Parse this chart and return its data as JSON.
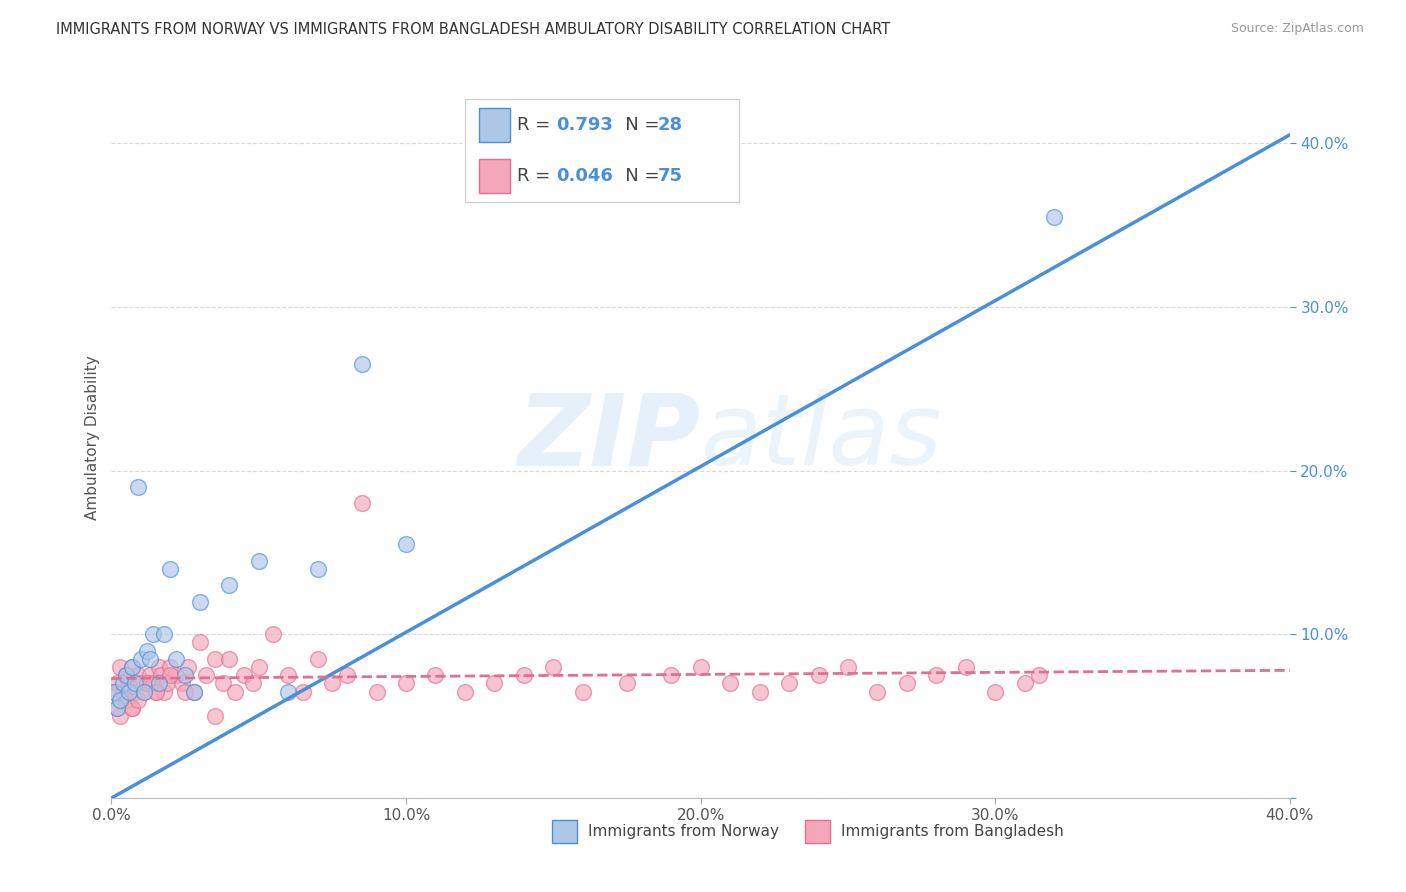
{
  "title": "IMMIGRANTS FROM NORWAY VS IMMIGRANTS FROM BANGLADESH AMBULATORY DISABILITY CORRELATION CHART",
  "source": "Source: ZipAtlas.com",
  "ylabel": "Ambulatory Disability",
  "xmin": 0.0,
  "xmax": 0.4,
  "ymin": 0.0,
  "ymax": 0.44,
  "norway_R": 0.793,
  "norway_N": 28,
  "bangladesh_R": 0.046,
  "bangladesh_N": 75,
  "norway_color": "#aec6e8",
  "norway_line_color": "#4a90d9",
  "bangladesh_color": "#f4a7b9",
  "bangladesh_line_color": "#e07090",
  "norway_scatter_x": [
    0.001,
    0.002,
    0.003,
    0.004,
    0.005,
    0.006,
    0.007,
    0.008,
    0.009,
    0.01,
    0.011,
    0.012,
    0.013,
    0.014,
    0.016,
    0.018,
    0.02,
    0.022,
    0.025,
    0.028,
    0.03,
    0.04,
    0.05,
    0.06,
    0.07,
    0.085,
    0.1,
    0.32
  ],
  "norway_scatter_y": [
    0.065,
    0.055,
    0.06,
    0.07,
    0.075,
    0.065,
    0.08,
    0.07,
    0.19,
    0.085,
    0.065,
    0.09,
    0.085,
    0.1,
    0.07,
    0.1,
    0.14,
    0.085,
    0.075,
    0.065,
    0.12,
    0.13,
    0.145,
    0.065,
    0.14,
    0.265,
    0.155,
    0.355
  ],
  "bangladesh_scatter_x": [
    0.001,
    0.002,
    0.003,
    0.004,
    0.005,
    0.005,
    0.006,
    0.007,
    0.007,
    0.008,
    0.009,
    0.01,
    0.011,
    0.012,
    0.013,
    0.014,
    0.015,
    0.016,
    0.017,
    0.018,
    0.019,
    0.02,
    0.022,
    0.024,
    0.026,
    0.028,
    0.03,
    0.032,
    0.035,
    0.038,
    0.04,
    0.042,
    0.045,
    0.048,
    0.05,
    0.055,
    0.06,
    0.065,
    0.07,
    0.075,
    0.08,
    0.085,
    0.09,
    0.1,
    0.11,
    0.12,
    0.13,
    0.14,
    0.15,
    0.16,
    0.175,
    0.19,
    0.2,
    0.21,
    0.22,
    0.23,
    0.24,
    0.25,
    0.26,
    0.27,
    0.28,
    0.29,
    0.3,
    0.31,
    0.315,
    0.002,
    0.003,
    0.005,
    0.007,
    0.009,
    0.012,
    0.015,
    0.02,
    0.025,
    0.035
  ],
  "bangladesh_scatter_y": [
    0.065,
    0.07,
    0.08,
    0.065,
    0.075,
    0.06,
    0.07,
    0.08,
    0.055,
    0.065,
    0.075,
    0.07,
    0.065,
    0.07,
    0.075,
    0.07,
    0.065,
    0.08,
    0.075,
    0.065,
    0.07,
    0.08,
    0.075,
    0.07,
    0.08,
    0.065,
    0.095,
    0.075,
    0.085,
    0.07,
    0.085,
    0.065,
    0.075,
    0.07,
    0.08,
    0.1,
    0.075,
    0.065,
    0.085,
    0.07,
    0.075,
    0.18,
    0.065,
    0.07,
    0.075,
    0.065,
    0.07,
    0.075,
    0.08,
    0.065,
    0.07,
    0.075,
    0.08,
    0.07,
    0.065,
    0.07,
    0.075,
    0.08,
    0.065,
    0.07,
    0.075,
    0.08,
    0.065,
    0.07,
    0.075,
    0.055,
    0.05,
    0.06,
    0.055,
    0.06,
    0.07,
    0.065,
    0.075,
    0.065,
    0.05
  ],
  "norway_line_x0": 0.0,
  "norway_line_y0": 0.0,
  "norway_line_x1": 0.4,
  "norway_line_y1": 0.405,
  "bangladesh_line_x0": 0.0,
  "bangladesh_line_y0": 0.073,
  "bangladesh_line_x1": 0.4,
  "bangladesh_line_y1": 0.078,
  "background_color": "#ffffff",
  "grid_color": "#d0d0d0",
  "watermark_zip": "ZIP",
  "watermark_atlas": "atlas",
  "xticks": [
    0.0,
    0.1,
    0.2,
    0.3,
    0.4
  ],
  "xtick_labels": [
    "0.0%",
    "10.0%",
    "20.0%",
    "30.0%",
    "40.0%"
  ],
  "yticks": [
    0.0,
    0.1,
    0.2,
    0.3,
    0.4
  ],
  "ytick_labels_right": [
    "",
    "10.0%",
    "20.0%",
    "30.0%",
    "40.0%"
  ],
  "legend_R_label": "R = ",
  "legend_N_label": "N = ",
  "bottom_label_norway": "Immigrants from Norway",
  "bottom_label_bangladesh": "Immigrants from Bangladesh"
}
